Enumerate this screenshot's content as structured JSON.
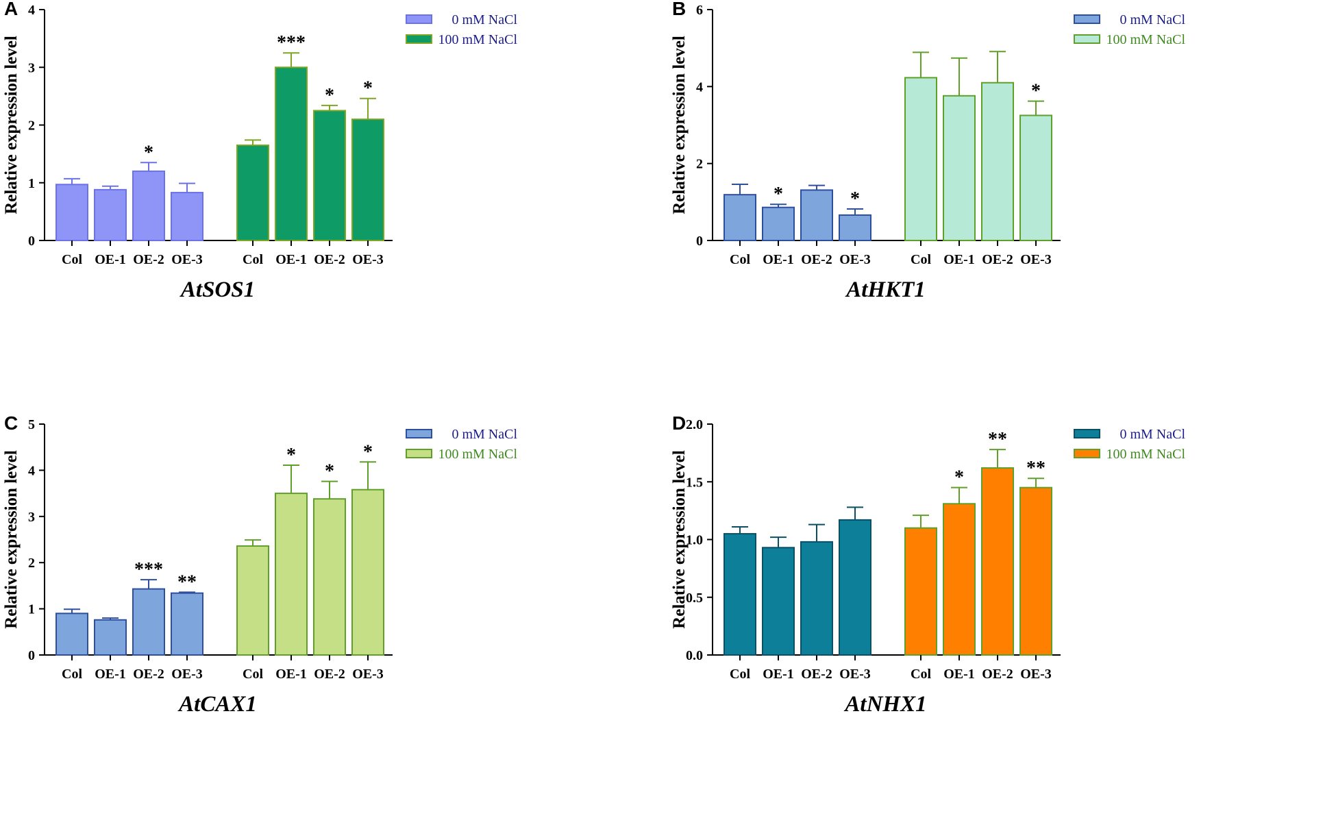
{
  "chart_data": [
    {
      "type": "bar",
      "panel": "A",
      "title": "AtSOS1",
      "xlabel": "AtSOS1",
      "ylabel": "Relative expression level",
      "ylim": [
        0,
        4
      ],
      "yticks": [
        0,
        1,
        2,
        3,
        4
      ],
      "grid": false,
      "legend": "top-right",
      "categories": [
        "Col",
        "OE-1",
        "OE-2",
        "OE-3"
      ],
      "series": [
        {
          "name": "0 mM NaCl",
          "fill": "#8f94f7",
          "stroke": "#6b72e8",
          "text_color": "#1c1c8c",
          "values": [
            0.97,
            0.88,
            1.2,
            0.83
          ],
          "errors": [
            0.1,
            0.06,
            0.15,
            0.16
          ],
          "significance": [
            "",
            "",
            "*",
            ""
          ]
        },
        {
          "name": "100 mM NaCl",
          "fill": "#0e9b65",
          "stroke": "#7ea622",
          "text_color": "#1c1c8c",
          "values": [
            1.65,
            3.0,
            2.25,
            2.1
          ],
          "errors": [
            0.09,
            0.25,
            0.09,
            0.36
          ],
          "significance": [
            "",
            "***",
            "*",
            "*"
          ]
        }
      ]
    },
    {
      "type": "bar",
      "panel": "B",
      "title": "AtHKT1",
      "xlabel": "AtHKT1",
      "ylabel": "Relative expression level",
      "ylim": [
        0,
        6
      ],
      "yticks": [
        0,
        2,
        4,
        6
      ],
      "grid": false,
      "legend": "top-right",
      "categories": [
        "Col",
        "OE-1",
        "OE-2",
        "OE-3"
      ],
      "series": [
        {
          "name": "0 mM NaCl",
          "fill": "#7fa6dc",
          "stroke": "#2e4f9e",
          "text_color": "#1c1c8c",
          "values": [
            1.19,
            0.86,
            1.31,
            0.66
          ],
          "errors": [
            0.27,
            0.08,
            0.12,
            0.16
          ],
          "significance": [
            "",
            "*",
            "",
            "*"
          ]
        },
        {
          "name": "100 mM NaCl",
          "fill": "#b7ead6",
          "stroke": "#5f9f2a",
          "text_color": "#3f8a1e",
          "values": [
            4.23,
            3.76,
            4.1,
            3.25
          ],
          "errors": [
            0.66,
            0.98,
            0.81,
            0.37
          ],
          "significance": [
            "",
            "",
            "",
            "*"
          ]
        }
      ]
    },
    {
      "type": "bar",
      "panel": "C",
      "title": "AtCAX1",
      "xlabel": "AtCAX1",
      "ylabel": "Relative expression level",
      "ylim": [
        0,
        5
      ],
      "yticks": [
        0,
        1,
        2,
        3,
        4,
        5
      ],
      "grid": false,
      "legend": "top-right",
      "categories": [
        "Col",
        "OE-1",
        "OE-2",
        "OE-3"
      ],
      "series": [
        {
          "name": "0 mM NaCl",
          "fill": "#7fa6dc",
          "stroke": "#2e4f9e",
          "text_color": "#1c1c8c",
          "values": [
            0.9,
            0.76,
            1.43,
            1.34
          ],
          "errors": [
            0.09,
            0.04,
            0.2,
            0.02
          ],
          "significance": [
            "",
            "",
            "***",
            "**"
          ]
        },
        {
          "name": "100 mM NaCl",
          "fill": "#c4df86",
          "stroke": "#5f9f2a",
          "text_color": "#3f8a1e",
          "values": [
            2.36,
            3.5,
            3.38,
            3.58
          ],
          "errors": [
            0.13,
            0.61,
            0.38,
            0.6
          ],
          "significance": [
            "",
            "*",
            "*",
            "*"
          ]
        }
      ]
    },
    {
      "type": "bar",
      "panel": "D",
      "title": "AtNHX1",
      "xlabel": "AtNHX1",
      "ylabel": "Relative expression level",
      "ylim": [
        0,
        2.0
      ],
      "yticks": [
        "0.0",
        "0.5",
        "1.0",
        "1.5",
        "2.0"
      ],
      "grid": false,
      "legend": "top-right",
      "categories": [
        "Col",
        "OE-1",
        "OE-2",
        "OE-3"
      ],
      "series": [
        {
          "name": "0 mM NaCl",
          "fill": "#0d7f98",
          "stroke": "#0a4f63",
          "text_color": "#1c1c8c",
          "values": [
            1.05,
            0.93,
            0.98,
            1.17
          ],
          "errors": [
            0.06,
            0.09,
            0.15,
            0.11
          ],
          "significance": [
            "",
            "",
            "",
            ""
          ]
        },
        {
          "name": "100 mM NaCl",
          "fill": "#ff8000",
          "stroke": "#5f9f2a",
          "text_color": "#3f8a1e",
          "values": [
            1.1,
            1.31,
            1.62,
            1.45
          ],
          "errors": [
            0.11,
            0.14,
            0.16,
            0.08
          ],
          "significance": [
            "",
            "*",
            "**",
            "**"
          ]
        }
      ]
    }
  ]
}
